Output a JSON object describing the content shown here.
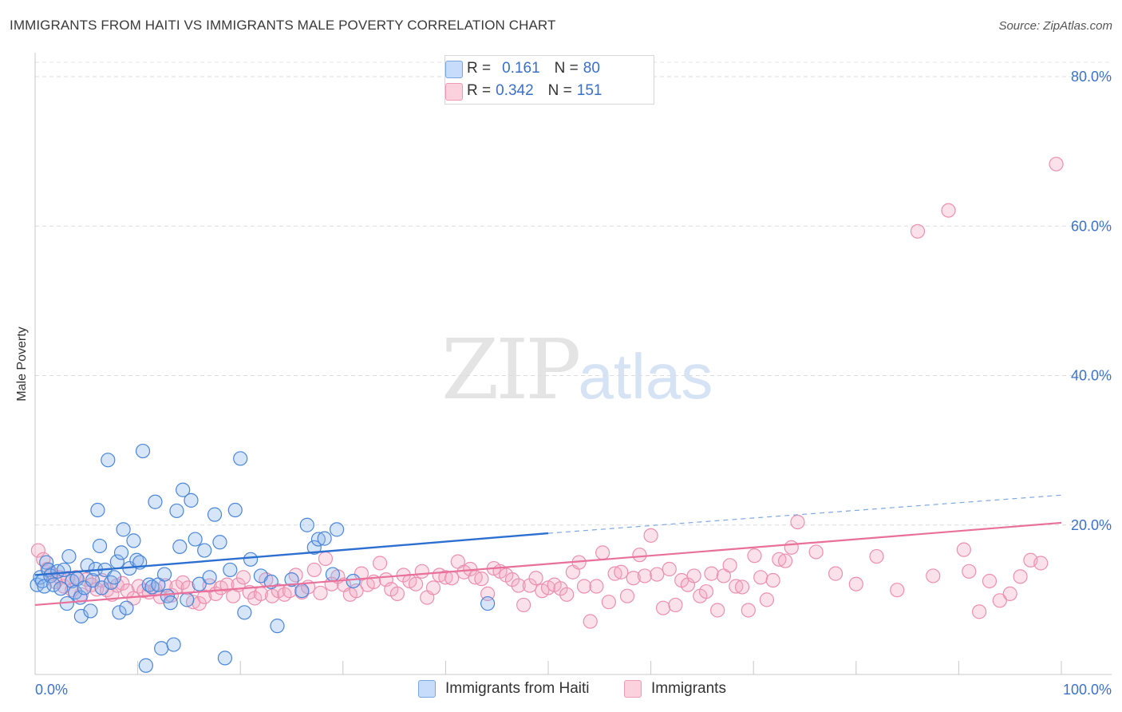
{
  "title": "IMMIGRANTS FROM HAITI VS IMMIGRANTS MALE POVERTY CORRELATION CHART",
  "source": "Source: ZipAtlas.com",
  "legend": {
    "row1": {
      "r_label": "R =",
      "r_value": "0.161",
      "n_label": "N =",
      "n_value": "80"
    },
    "row2": {
      "r_label": "R =",
      "r_value": "0.342",
      "n_label": "N =",
      "n_value": "151"
    }
  },
  "bottom_legend": {
    "series1": "Immigrants from Haiti",
    "series2": "Immigrants"
  },
  "watermark": {
    "zip": "ZIP",
    "atlas": "atlas"
  },
  "colors": {
    "blue": "#4a86d8",
    "blue_line": "#2d6fd0",
    "pink": "#ec8fae",
    "pink_line": "#e8709a",
    "axis_text": "#3d72c8"
  },
  "chart_data": {
    "type": "scatter",
    "title": "IMMIGRANTS FROM HAITI VS IMMIGRANTS MALE POVERTY CORRELATION CHART",
    "xlabel": "",
    "ylabel": "Male Poverty",
    "xlim": [
      0,
      100
    ],
    "ylim": [
      0,
      80
    ],
    "x_ticks": [
      {
        "value": 0,
        "label": "0.0%"
      },
      {
        "value": 100,
        "label": "100.0%"
      }
    ],
    "y_ticks": [
      {
        "value": 20,
        "label": "20.0%"
      },
      {
        "value": 40,
        "label": "40.0%"
      },
      {
        "value": 60,
        "label": "60.0%"
      },
      {
        "value": 80,
        "label": "80.0%"
      }
    ],
    "grid": true,
    "series": [
      {
        "name": "Immigrants from Haiti",
        "color": "#4a86d8",
        "trend": {
          "x0": 0,
          "y0": 13.3,
          "x1": 50,
          "y1": 18.9,
          "dashed_to_x": 100,
          "dashed_to_y": 24.0
        },
        "points": [
          [
            0.2,
            12
          ],
          [
            0.5,
            13
          ],
          [
            0.7,
            12.5
          ],
          [
            0.9,
            11.8
          ],
          [
            1.1,
            15
          ],
          [
            1.3,
            14
          ],
          [
            1.5,
            13.2
          ],
          [
            1.8,
            12
          ],
          [
            2.2,
            13.8
          ],
          [
            2.5,
            11.5
          ],
          [
            2.8,
            14
          ],
          [
            3.1,
            9.5
          ],
          [
            3.3,
            15.8
          ],
          [
            3.6,
            12.5
          ],
          [
            3.9,
            11
          ],
          [
            4.1,
            12.8
          ],
          [
            4.4,
            10.3
          ],
          [
            4.5,
            7.8
          ],
          [
            4.8,
            11.6
          ],
          [
            5.1,
            14.6
          ],
          [
            5.4,
            8.5
          ],
          [
            5.6,
            12.6
          ],
          [
            5.9,
            14.1
          ],
          [
            6.1,
            22
          ],
          [
            6.3,
            17.2
          ],
          [
            6.5,
            11.6
          ],
          [
            6.8,
            14
          ],
          [
            7.1,
            28.7
          ],
          [
            7.4,
            12.3
          ],
          [
            7.7,
            13
          ],
          [
            8.0,
            15.1
          ],
          [
            8.2,
            8.3
          ],
          [
            8.4,
            16.3
          ],
          [
            8.6,
            19.4
          ],
          [
            8.9,
            8.9
          ],
          [
            9.2,
            14.2
          ],
          [
            9.6,
            17.9
          ],
          [
            9.9,
            15.3
          ],
          [
            10.2,
            15
          ],
          [
            10.5,
            29.9
          ],
          [
            10.8,
            1.2
          ],
          [
            11.1,
            12
          ],
          [
            11.4,
            11.7
          ],
          [
            11.7,
            23.1
          ],
          [
            12.0,
            12
          ],
          [
            12.3,
            3.5
          ],
          [
            12.6,
            13.4
          ],
          [
            12.9,
            10.5
          ],
          [
            13.2,
            9.6
          ],
          [
            13.5,
            4
          ],
          [
            13.8,
            21.9
          ],
          [
            14.1,
            17.1
          ],
          [
            14.4,
            24.7
          ],
          [
            14.8,
            10
          ],
          [
            15.2,
            23.3
          ],
          [
            15.6,
            18.1
          ],
          [
            16.0,
            12.1
          ],
          [
            16.5,
            16.6
          ],
          [
            17.0,
            13
          ],
          [
            17.5,
            21.4
          ],
          [
            18.0,
            17.7
          ],
          [
            18.5,
            2.2
          ],
          [
            19.0,
            14
          ],
          [
            19.5,
            22
          ],
          [
            20.0,
            28.9
          ],
          [
            20.4,
            8.3
          ],
          [
            21.0,
            15.4
          ],
          [
            22.0,
            13.2
          ],
          [
            23.0,
            12.4
          ],
          [
            23.6,
            6.5
          ],
          [
            25.0,
            12.7
          ],
          [
            26.0,
            11.2
          ],
          [
            26.5,
            20
          ],
          [
            27.2,
            17
          ],
          [
            27.6,
            18.1
          ],
          [
            28.2,
            18.2
          ],
          [
            29.0,
            13.4
          ],
          [
            29.4,
            19.4
          ],
          [
            31,
            12.5
          ],
          [
            44.1,
            9.5
          ]
        ]
      },
      {
        "name": "Immigrants",
        "color": "#ec8fae",
        "trend": {
          "x0": 0,
          "y0": 9.3,
          "x1": 100,
          "y1": 20.3
        },
        "points": [
          [
            0.3,
            16.6
          ],
          [
            0.8,
            15.4
          ],
          [
            1.2,
            14.1
          ],
          [
            1.6,
            13.5
          ],
          [
            2.0,
            12.4
          ],
          [
            2.4,
            13
          ],
          [
            2.8,
            11.8
          ],
          [
            3.2,
            12.9
          ],
          [
            3.6,
            11.3
          ],
          [
            4.0,
            13
          ],
          [
            4.5,
            10.7
          ],
          [
            5.0,
            12.7
          ],
          [
            5.5,
            12
          ],
          [
            6.0,
            11.4
          ],
          [
            6.5,
            12.6
          ],
          [
            7.0,
            11.3
          ],
          [
            7.5,
            10.7
          ],
          [
            8.0,
            11.9
          ],
          [
            8.5,
            12.2
          ],
          [
            9.0,
            11.2
          ],
          [
            9.6,
            10.2
          ],
          [
            10.1,
            11.8
          ],
          [
            10.6,
            11.2
          ],
          [
            11.1,
            11
          ],
          [
            11.7,
            11.4
          ],
          [
            12.2,
            10.4
          ],
          [
            12.7,
            11.9
          ],
          [
            13.3,
            10.6
          ],
          [
            13.8,
            11.7
          ],
          [
            14.4,
            12.3
          ],
          [
            14.9,
            11.6
          ],
          [
            15.4,
            9.7
          ],
          [
            16.0,
            9.5
          ],
          [
            16.5,
            10.4
          ],
          [
            17.0,
            11.9
          ],
          [
            17.6,
            10.8
          ],
          [
            18.1,
            11.6
          ],
          [
            18.7,
            12
          ],
          [
            19.3,
            10.5
          ],
          [
            19.8,
            12
          ],
          [
            20.3,
            13
          ],
          [
            20.9,
            11
          ],
          [
            21.4,
            10.2
          ],
          [
            22.0,
            10.8
          ],
          [
            22.5,
            12.7
          ],
          [
            23.1,
            10.5
          ],
          [
            23.7,
            11.2
          ],
          [
            24.3,
            10.7
          ],
          [
            24.8,
            11.2
          ],
          [
            25.4,
            13.3
          ],
          [
            26.0,
            11
          ],
          [
            26.6,
            11.7
          ],
          [
            27.2,
            14
          ],
          [
            27.8,
            10.9
          ],
          [
            28.3,
            15.5
          ],
          [
            28.9,
            12.1
          ],
          [
            29.5,
            13.1
          ],
          [
            30.1,
            12
          ],
          [
            30.7,
            10.7
          ],
          [
            31.3,
            11.2
          ],
          [
            31.8,
            13.5
          ],
          [
            32.4,
            12
          ],
          [
            33.0,
            12.4
          ],
          [
            33.6,
            14.9
          ],
          [
            34.2,
            12.7
          ],
          [
            34.7,
            11.4
          ],
          [
            35.3,
            10.8
          ],
          [
            35.9,
            13.3
          ],
          [
            36.5,
            12.5
          ],
          [
            37.1,
            12.1
          ],
          [
            37.7,
            13.8
          ],
          [
            38.2,
            10.3
          ],
          [
            38.8,
            11.6
          ],
          [
            39.4,
            13.3
          ],
          [
            40.0,
            13
          ],
          [
            40.6,
            12.9
          ],
          [
            41.2,
            15.1
          ],
          [
            41.8,
            13.7
          ],
          [
            42.4,
            14.1
          ],
          [
            42.9,
            13
          ],
          [
            43.5,
            12.8
          ],
          [
            44.1,
            10.8
          ],
          [
            44.7,
            14.2
          ],
          [
            45.3,
            13.8
          ],
          [
            45.9,
            13.3
          ],
          [
            46.5,
            12.7
          ],
          [
            47.1,
            11.9
          ],
          [
            47.6,
            9.3
          ],
          [
            48.2,
            11.9
          ],
          [
            48.8,
            12.9
          ],
          [
            49.4,
            11.2
          ],
          [
            50.0,
            11.6
          ],
          [
            50.6,
            12
          ],
          [
            51.2,
            11.5
          ],
          [
            51.8,
            10.7
          ],
          [
            52.4,
            13.7
          ],
          [
            53.0,
            15
          ],
          [
            53.5,
            11.8
          ],
          [
            54.1,
            7.1
          ],
          [
            54.7,
            11.8
          ],
          [
            55.3,
            16.3
          ],
          [
            55.9,
            9.7
          ],
          [
            56.5,
            13.5
          ],
          [
            57.1,
            13.7
          ],
          [
            57.7,
            10.5
          ],
          [
            58.3,
            12.9
          ],
          [
            58.9,
            16
          ],
          [
            59.4,
            13.2
          ],
          [
            60.0,
            18.6
          ],
          [
            60.6,
            13.4
          ],
          [
            61.2,
            8.9
          ],
          [
            61.8,
            14.1
          ],
          [
            62.4,
            9.3
          ],
          [
            63.0,
            12.6
          ],
          [
            63.6,
            12
          ],
          [
            64.2,
            13.2
          ],
          [
            64.8,
            10.5
          ],
          [
            65.4,
            11.1
          ],
          [
            65.9,
            13.5
          ],
          [
            66.5,
            8.6
          ],
          [
            67.1,
            13.2
          ],
          [
            67.7,
            14.6
          ],
          [
            68.3,
            11.8
          ],
          [
            68.9,
            11.7
          ],
          [
            69.5,
            8.6
          ],
          [
            70.1,
            15.9
          ],
          [
            70.7,
            13
          ],
          [
            71.3,
            10
          ],
          [
            71.9,
            12.6
          ],
          [
            72.5,
            15.4
          ],
          [
            73.1,
            15.2
          ],
          [
            73.7,
            17
          ],
          [
            74.3,
            20.4
          ],
          [
            76.1,
            16.4
          ],
          [
            78.0,
            13.5
          ],
          [
            80.0,
            12.1
          ],
          [
            82.0,
            15.8
          ],
          [
            84.0,
            11.3
          ],
          [
            86.0,
            59.3
          ],
          [
            89.0,
            62.1
          ],
          [
            91.0,
            13.8
          ],
          [
            92.0,
            8.4
          ],
          [
            93.0,
            12.5
          ],
          [
            94.0,
            9.9
          ],
          [
            95.0,
            10.8
          ],
          [
            96.0,
            13.1
          ],
          [
            97.0,
            15.3
          ],
          [
            98.0,
            14.9
          ],
          [
            99.5,
            68.3
          ],
          [
            90.5,
            16.7
          ],
          [
            87.5,
            13.2
          ]
        ]
      }
    ]
  }
}
